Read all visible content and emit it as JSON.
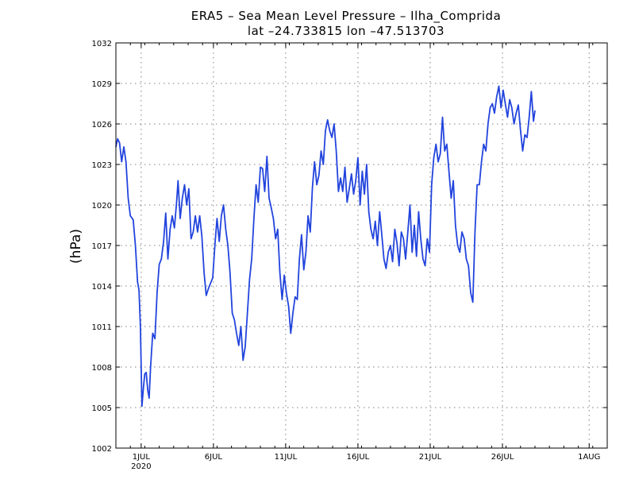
{
  "chart_data": {
    "type": "line",
    "title": "ERA5 – Sea Mean Level Pressure – Ilha_Comprida",
    "subtitle": "lat –24.733815 lon –47.513703",
    "xlabel": "",
    "ylabel": "(hPa)",
    "x_unit": "days since 00Z 30 JUN 2020",
    "xlim": [
      -1,
      33
    ],
    "ylim": [
      1002,
      1032
    ],
    "yticks": [
      1002,
      1005,
      1008,
      1011,
      1014,
      1017,
      1020,
      1023,
      1026,
      1029,
      1032
    ],
    "ytick_labels": [
      "1002",
      "1005",
      "1008",
      "1011",
      "1014",
      "1017",
      "1020",
      "1023",
      "1026",
      "1029",
      "1032"
    ],
    "xticks": [
      {
        "x": 0.75,
        "label": "1JUL",
        "sub": "2020"
      },
      {
        "x": 5.75,
        "label": "6JUL",
        "sub": ""
      },
      {
        "x": 10.75,
        "label": "11JUL",
        "sub": ""
      },
      {
        "x": 15.75,
        "label": "16JUL",
        "sub": ""
      },
      {
        "x": 20.75,
        "label": "21JUL",
        "sub": ""
      },
      {
        "x": 25.75,
        "label": "26JUL",
        "sub": ""
      },
      {
        "x": 31.75,
        "label": "1AUG",
        "sub": ""
      }
    ],
    "grid": true,
    "series": [
      {
        "name": "Sea Mean Level Pressure",
        "color": "#2244dd",
        "points": [
          [
            -1.0,
            1024.3
          ],
          [
            -0.88,
            1024.9
          ],
          [
            -0.75,
            1024.6
          ],
          [
            -0.6,
            1023.2
          ],
          [
            -0.45,
            1024.3
          ],
          [
            -0.3,
            1023.2
          ],
          [
            -0.15,
            1020.5
          ],
          [
            0.0,
            1019.2
          ],
          [
            0.2,
            1018.9
          ],
          [
            0.35,
            1017.0
          ],
          [
            0.5,
            1014.3
          ],
          [
            0.6,
            1013.7
          ],
          [
            0.7,
            1011.0
          ],
          [
            0.8,
            1005.1
          ],
          [
            0.9,
            1006.4
          ],
          [
            1.0,
            1007.5
          ],
          [
            1.1,
            1007.6
          ],
          [
            1.2,
            1006.3
          ],
          [
            1.3,
            1005.7
          ],
          [
            1.4,
            1008.0
          ],
          [
            1.55,
            1010.5
          ],
          [
            1.7,
            1010.1
          ],
          [
            1.85,
            1013.5
          ],
          [
            2.0,
            1015.6
          ],
          [
            2.15,
            1016.0
          ],
          [
            2.3,
            1017.3
          ],
          [
            2.45,
            1019.4
          ],
          [
            2.6,
            1016.0
          ],
          [
            2.75,
            1018.2
          ],
          [
            2.9,
            1019.2
          ],
          [
            3.05,
            1018.3
          ],
          [
            3.2,
            1020.2
          ],
          [
            3.3,
            1021.8
          ],
          [
            3.45,
            1019.0
          ],
          [
            3.6,
            1020.5
          ],
          [
            3.75,
            1021.5
          ],
          [
            3.9,
            1020.0
          ],
          [
            4.05,
            1021.2
          ],
          [
            4.2,
            1017.5
          ],
          [
            4.35,
            1018.0
          ],
          [
            4.5,
            1019.2
          ],
          [
            4.65,
            1018.0
          ],
          [
            4.8,
            1019.2
          ],
          [
            4.95,
            1017.7
          ],
          [
            5.1,
            1015.0
          ],
          [
            5.25,
            1013.3
          ],
          [
            5.4,
            1013.8
          ],
          [
            5.55,
            1014.2
          ],
          [
            5.7,
            1014.6
          ],
          [
            5.85,
            1017.0
          ],
          [
            6.0,
            1019.0
          ],
          [
            6.15,
            1017.3
          ],
          [
            6.3,
            1019.2
          ],
          [
            6.45,
            1020.0
          ],
          [
            6.6,
            1018.2
          ],
          [
            6.75,
            1017.0
          ],
          [
            6.9,
            1015.0
          ],
          [
            7.05,
            1012.0
          ],
          [
            7.2,
            1011.5
          ],
          [
            7.35,
            1010.5
          ],
          [
            7.5,
            1009.6
          ],
          [
            7.65,
            1011.0
          ],
          [
            7.8,
            1008.5
          ],
          [
            7.95,
            1009.5
          ],
          [
            8.1,
            1012.0
          ],
          [
            8.25,
            1014.5
          ],
          [
            8.4,
            1016.0
          ],
          [
            8.55,
            1019.0
          ],
          [
            8.7,
            1021.5
          ],
          [
            8.85,
            1020.2
          ],
          [
            9.0,
            1022.8
          ],
          [
            9.15,
            1022.7
          ],
          [
            9.3,
            1021.0
          ],
          [
            9.45,
            1023.6
          ],
          [
            9.6,
            1020.5
          ],
          [
            9.75,
            1019.8
          ],
          [
            9.9,
            1019.0
          ],
          [
            10.05,
            1017.5
          ],
          [
            10.2,
            1018.2
          ],
          [
            10.35,
            1015.0
          ],
          [
            10.5,
            1013.0
          ],
          [
            10.65,
            1014.8
          ],
          [
            10.8,
            1013.5
          ],
          [
            10.95,
            1012.5
          ],
          [
            11.1,
            1010.5
          ],
          [
            11.25,
            1012.0
          ],
          [
            11.4,
            1013.2
          ],
          [
            11.55,
            1013.0
          ],
          [
            11.7,
            1016.0
          ],
          [
            11.85,
            1017.8
          ],
          [
            12.0,
            1015.2
          ],
          [
            12.15,
            1016.5
          ],
          [
            12.3,
            1019.2
          ],
          [
            12.45,
            1018.0
          ],
          [
            12.6,
            1021.3
          ],
          [
            12.75,
            1023.2
          ],
          [
            12.9,
            1021.5
          ],
          [
            13.05,
            1022.2
          ],
          [
            13.2,
            1024.0
          ],
          [
            13.35,
            1023.0
          ],
          [
            13.5,
            1025.5
          ],
          [
            13.65,
            1026.3
          ],
          [
            13.8,
            1025.5
          ],
          [
            13.95,
            1025.0
          ],
          [
            14.1,
            1026.0
          ],
          [
            14.25,
            1024.0
          ],
          [
            14.4,
            1021.0
          ],
          [
            14.55,
            1022.0
          ],
          [
            14.7,
            1021.0
          ],
          [
            14.85,
            1022.8
          ],
          [
            15.0,
            1020.2
          ],
          [
            15.15,
            1021.2
          ],
          [
            15.3,
            1022.3
          ],
          [
            15.45,
            1020.8
          ],
          [
            15.6,
            1021.8
          ],
          [
            15.75,
            1023.5
          ],
          [
            15.9,
            1020.0
          ],
          [
            16.05,
            1022.5
          ],
          [
            16.2,
            1020.8
          ],
          [
            16.35,
            1023.0
          ],
          [
            16.5,
            1019.5
          ],
          [
            16.65,
            1018.2
          ],
          [
            16.8,
            1017.5
          ],
          [
            16.95,
            1018.8
          ],
          [
            17.1,
            1017.0
          ],
          [
            17.25,
            1019.5
          ],
          [
            17.4,
            1017.8
          ],
          [
            17.55,
            1016.0
          ],
          [
            17.7,
            1015.3
          ],
          [
            17.85,
            1016.5
          ],
          [
            18.0,
            1017.0
          ],
          [
            18.15,
            1015.8
          ],
          [
            18.3,
            1018.2
          ],
          [
            18.45,
            1017.2
          ],
          [
            18.6,
            1015.5
          ],
          [
            18.75,
            1018.0
          ],
          [
            18.9,
            1017.5
          ],
          [
            19.05,
            1016.0
          ],
          [
            19.2,
            1018.0
          ],
          [
            19.35,
            1020.0
          ],
          [
            19.5,
            1016.5
          ],
          [
            19.65,
            1018.5
          ],
          [
            19.8,
            1016.2
          ],
          [
            19.95,
            1019.5
          ],
          [
            20.1,
            1017.5
          ],
          [
            20.25,
            1016.0
          ],
          [
            20.4,
            1015.5
          ],
          [
            20.55,
            1017.5
          ],
          [
            20.7,
            1016.5
          ],
          [
            20.85,
            1021.5
          ],
          [
            21.0,
            1023.5
          ],
          [
            21.15,
            1024.5
          ],
          [
            21.3,
            1023.2
          ],
          [
            21.45,
            1023.8
          ],
          [
            21.6,
            1026.5
          ],
          [
            21.75,
            1024.0
          ],
          [
            21.9,
            1024.5
          ],
          [
            22.05,
            1022.5
          ],
          [
            22.2,
            1020.5
          ],
          [
            22.35,
            1021.8
          ],
          [
            22.5,
            1018.5
          ],
          [
            22.65,
            1017.0
          ],
          [
            22.8,
            1016.5
          ],
          [
            22.95,
            1018.0
          ],
          [
            23.1,
            1017.5
          ],
          [
            23.25,
            1016.0
          ],
          [
            23.4,
            1015.5
          ],
          [
            23.55,
            1013.5
          ],
          [
            23.7,
            1012.8
          ],
          [
            23.85,
            1018.0
          ],
          [
            24.0,
            1021.5
          ],
          [
            24.15,
            1021.5
          ],
          [
            24.3,
            1023.2
          ],
          [
            24.45,
            1024.5
          ],
          [
            24.6,
            1024.0
          ],
          [
            24.75,
            1026.0
          ],
          [
            24.9,
            1027.2
          ],
          [
            25.05,
            1027.5
          ],
          [
            25.2,
            1026.8
          ],
          [
            25.35,
            1028.0
          ],
          [
            25.5,
            1028.8
          ],
          [
            25.65,
            1027.2
          ],
          [
            25.8,
            1028.5
          ],
          [
            25.95,
            1027.5
          ],
          [
            26.1,
            1026.5
          ],
          [
            26.25,
            1027.8
          ],
          [
            26.4,
            1027.2
          ],
          [
            26.55,
            1026.0
          ],
          [
            26.7,
            1026.8
          ],
          [
            26.85,
            1027.4
          ],
          [
            27.0,
            1025.5
          ],
          [
            27.15,
            1024.0
          ],
          [
            27.3,
            1025.2
          ],
          [
            27.45,
            1025.0
          ],
          [
            27.6,
            1026.5
          ],
          [
            27.75,
            1028.4
          ],
          [
            27.9,
            1026.2
          ],
          [
            28.0,
            1027.0
          ]
        ]
      }
    ]
  }
}
